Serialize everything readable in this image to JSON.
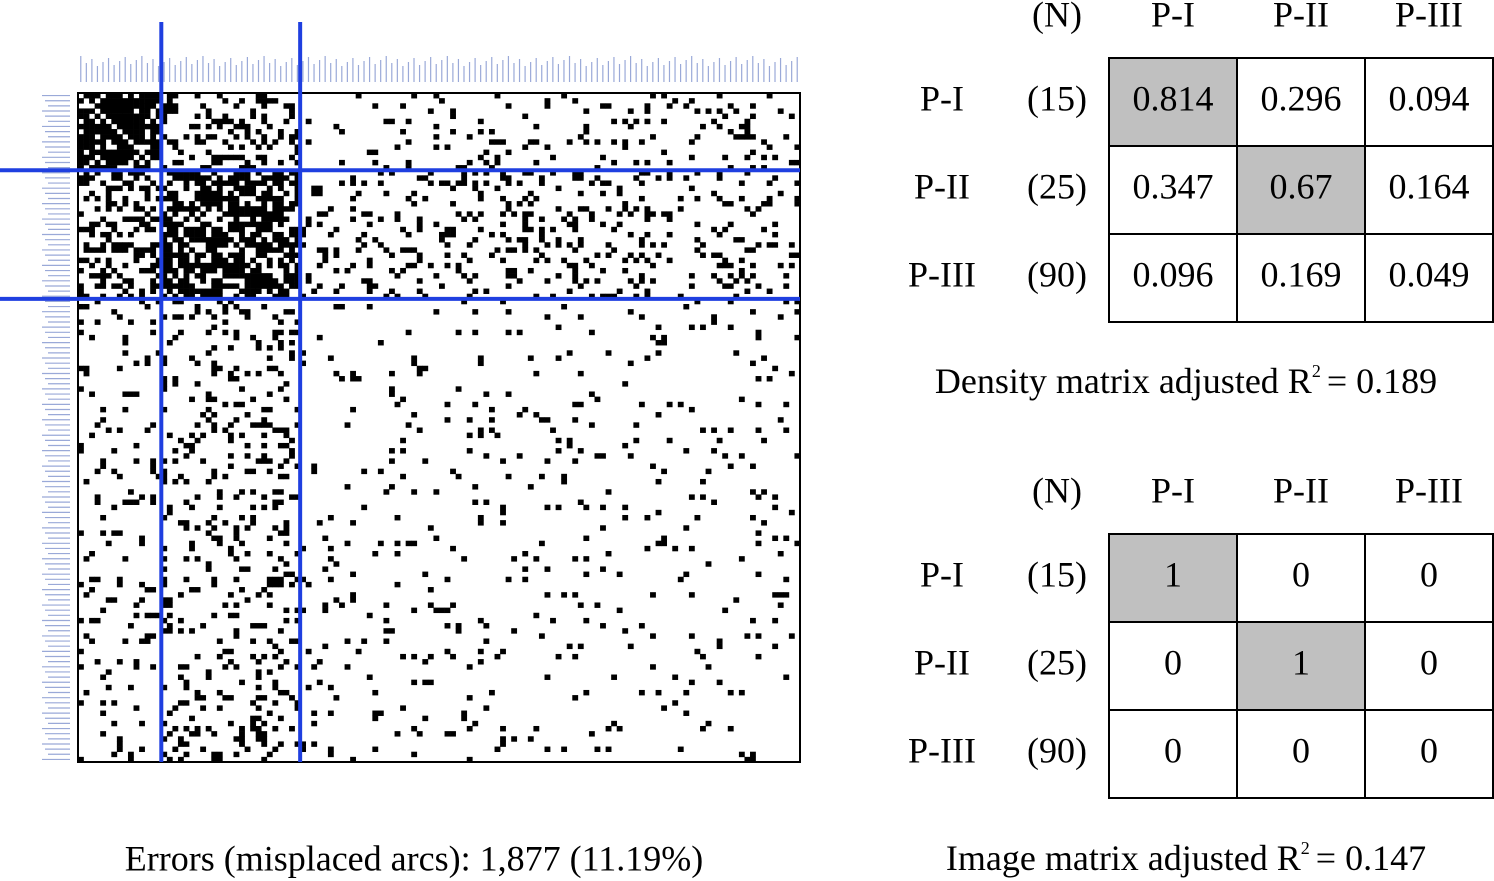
{
  "matrix_caption": "Errors (misplaced arcs): 1,877 (11.19%)",
  "density_table": {
    "header": [
      "(N)",
      "P-I",
      "P-II",
      "P-III"
    ],
    "rows": [
      {
        "label": "P-I",
        "n": "(15)",
        "cells": [
          0.814,
          0.296,
          0.094
        ]
      },
      {
        "label": "P-II",
        "n": "(25)",
        "cells": [
          0.347,
          0.67,
          0.164
        ]
      },
      {
        "label": "P-III",
        "n": "(90)",
        "cells": [
          0.096,
          0.169,
          0.049
        ]
      }
    ],
    "caption": {
      "text": "Density matrix adjusted R",
      "sup": "2",
      "rest": "= 0.189"
    }
  },
  "image_table": {
    "header": [
      "(N)",
      "P-I",
      "P-II",
      "P-III"
    ],
    "rows": [
      {
        "label": "P-I",
        "n": "(15)",
        "cells": [
          1,
          0,
          0
        ]
      },
      {
        "label": "P-II",
        "n": "(25)",
        "cells": [
          0,
          1,
          0
        ]
      },
      {
        "label": "P-III",
        "n": "(90)",
        "cells": [
          0,
          0,
          0
        ]
      }
    ],
    "caption": {
      "text": "Image matrix adjusted R",
      "sup": "2",
      "rest": "= 0.147"
    }
  }
}
